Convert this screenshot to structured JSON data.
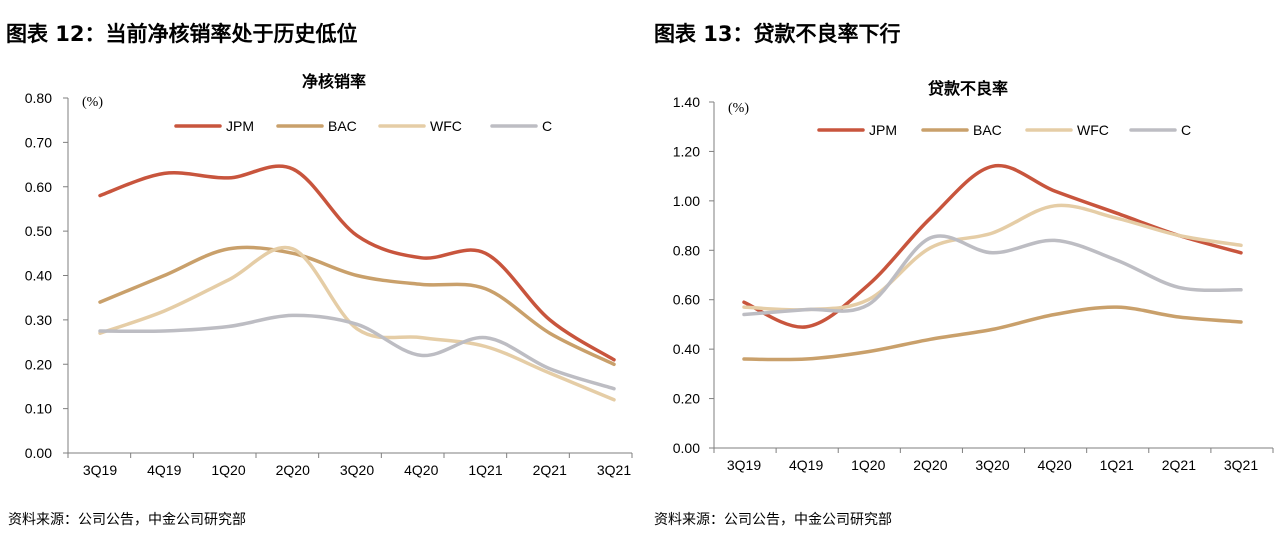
{
  "left": {
    "figure_title": "图表 12：当前净核销率处于历史低位",
    "source": "资料来源：公司公告，中金公司研究部",
    "chart_data": {
      "type": "line",
      "title": "净核销率",
      "unit_label": "(%)",
      "categories": [
        "3Q19",
        "4Q19",
        "1Q20",
        "2Q20",
        "3Q20",
        "4Q20",
        "1Q21",
        "2Q21",
        "3Q21"
      ],
      "ylim": [
        0,
        0.8
      ],
      "yticks": [
        "0.00",
        "0.10",
        "0.20",
        "0.30",
        "0.40",
        "0.50",
        "0.60",
        "0.70",
        "0.80"
      ],
      "legend_position": "top",
      "grid": false,
      "series": [
        {
          "name": "JPM",
          "color": "#C8553D",
          "values": [
            0.58,
            0.63,
            0.62,
            0.64,
            0.49,
            0.44,
            0.45,
            0.3,
            0.21
          ]
        },
        {
          "name": "BAC",
          "color": "#C9A06B",
          "values": [
            0.34,
            0.4,
            0.46,
            0.45,
            0.4,
            0.38,
            0.37,
            0.27,
            0.2
          ]
        },
        {
          "name": "WFC",
          "color": "#E5CDA6",
          "values": [
            0.27,
            0.32,
            0.39,
            0.46,
            0.28,
            0.26,
            0.24,
            0.18,
            0.12
          ]
        },
        {
          "name": "C",
          "color": "#BDBDC3",
          "values": [
            0.275,
            0.275,
            0.285,
            0.31,
            0.29,
            0.22,
            0.26,
            0.19,
            0.145
          ]
        }
      ]
    }
  },
  "right": {
    "figure_title": "图表 13：贷款不良率下行",
    "source": "资料来源：公司公告，中金公司研究部",
    "chart_data": {
      "type": "line",
      "title": "贷款不良率",
      "unit_label": "(%)",
      "categories": [
        "3Q19",
        "4Q19",
        "1Q20",
        "2Q20",
        "3Q20",
        "4Q20",
        "1Q21",
        "2Q21",
        "3Q21"
      ],
      "ylim": [
        0,
        1.4
      ],
      "yticks": [
        "0.00",
        "0.20",
        "0.40",
        "0.60",
        "0.80",
        "1.00",
        "1.20",
        "1.40"
      ],
      "legend_position": "top",
      "grid": false,
      "series": [
        {
          "name": "JPM",
          "color": "#C8553D",
          "values": [
            0.59,
            0.49,
            0.66,
            0.93,
            1.14,
            1.04,
            0.95,
            0.86,
            0.79
          ]
        },
        {
          "name": "BAC",
          "color": "#C9A06B",
          "values": [
            0.36,
            0.36,
            0.39,
            0.44,
            0.48,
            0.54,
            0.57,
            0.53,
            0.51
          ]
        },
        {
          "name": "WFC",
          "color": "#E5CDA6",
          "values": [
            0.57,
            0.56,
            0.6,
            0.81,
            0.87,
            0.98,
            0.93,
            0.86,
            0.82
          ]
        },
        {
          "name": "C",
          "color": "#BDBDC3",
          "values": [
            0.54,
            0.56,
            0.58,
            0.85,
            0.79,
            0.84,
            0.76,
            0.65,
            0.64
          ]
        }
      ]
    }
  }
}
